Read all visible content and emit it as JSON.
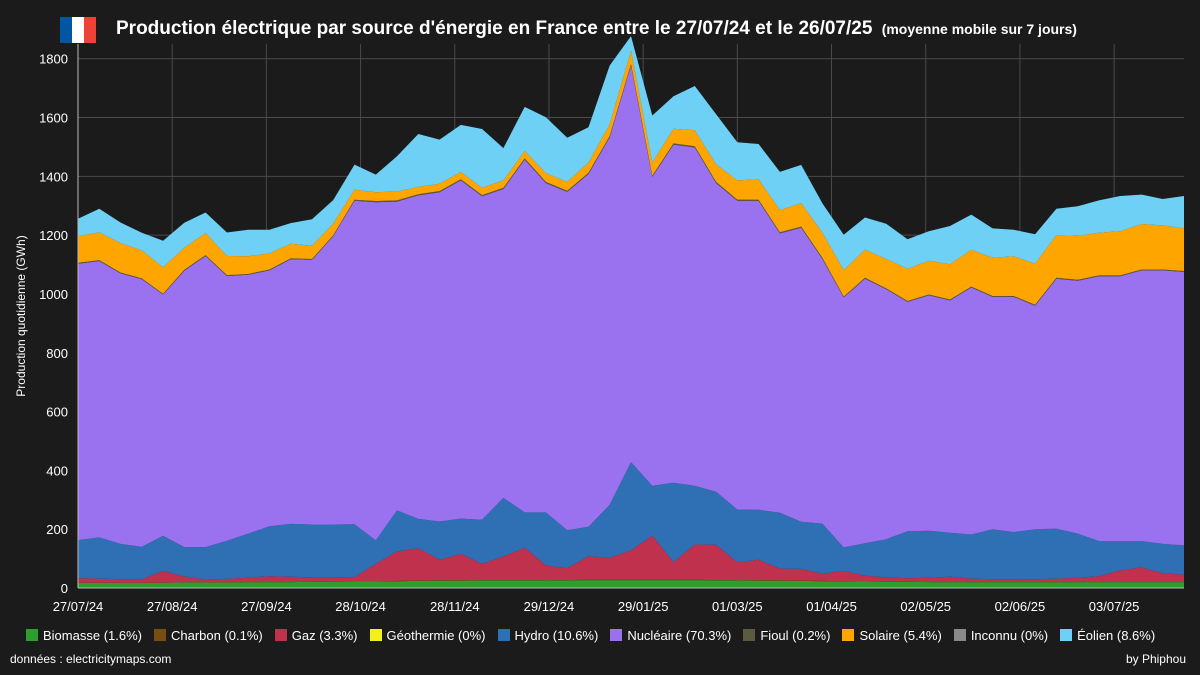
{
  "header": {
    "title": "Production électrique par source d'énergie en France entre le 27/07/24 et le 26/07/25",
    "subtitle": "(moyenne mobile sur 7 jours)",
    "flag_colors": [
      "#0055a4",
      "#ffffff",
      "#ef4135"
    ]
  },
  "footer": {
    "source": "données : electricitymaps.com",
    "credit": "by Phiphou"
  },
  "chart_data": {
    "type": "area",
    "stacked": true,
    "ylabel": "Production quotidienne (GWh)",
    "xlabel": "",
    "ylim": [
      0,
      1850
    ],
    "yticks": [
      0,
      200,
      400,
      600,
      800,
      1000,
      1200,
      1400,
      1600,
      1800
    ],
    "x_tick_labels": [
      "27/07/24",
      "27/08/24",
      "27/09/24",
      "28/10/24",
      "28/11/24",
      "29/12/24",
      "29/01/25",
      "01/03/25",
      "01/04/25",
      "02/05/25",
      "02/06/25",
      "03/07/25"
    ],
    "x_tick_days": [
      0,
      31,
      62,
      93,
      124,
      155,
      186,
      217,
      248,
      279,
      310,
      341
    ],
    "x_range_days": [
      0,
      364
    ],
    "grid": true,
    "legend_position": "bottom",
    "x_days": [
      0,
      7,
      14,
      21,
      28,
      35,
      42,
      49,
      56,
      63,
      70,
      77,
      84,
      91,
      98,
      105,
      112,
      119,
      126,
      133,
      140,
      147,
      154,
      161,
      168,
      175,
      182,
      189,
      196,
      203,
      210,
      217,
      224,
      231,
      238,
      245,
      252,
      259,
      266,
      273,
      280,
      287,
      294,
      301,
      308,
      315,
      322,
      329,
      336,
      343,
      350,
      357,
      364
    ],
    "series": [
      {
        "name": "Biomasse (1.6%)",
        "color": "#2ca02c",
        "values": [
          18,
          18,
          18,
          18,
          18,
          19,
          19,
          19,
          20,
          20,
          20,
          21,
          21,
          22,
          22,
          23,
          24,
          25,
          25,
          26,
          26,
          26,
          26,
          26,
          27,
          27,
          27,
          27,
          27,
          27,
          26,
          26,
          25,
          25,
          24,
          23,
          22,
          22,
          21,
          21,
          20,
          20,
          20,
          20,
          20,
          20,
          20,
          20,
          20,
          20,
          20,
          20,
          20
        ]
      },
      {
        "name": "Charbon (0.1%)",
        "color": "#7a4e12",
        "values": [
          0,
          0,
          0,
          0,
          0,
          0,
          0,
          0,
          0,
          0,
          0,
          0,
          0,
          0,
          0,
          1,
          1,
          1,
          1,
          1,
          1,
          1,
          1,
          1,
          1,
          1,
          1,
          1,
          1,
          1,
          1,
          1,
          1,
          1,
          1,
          1,
          1,
          0,
          0,
          0,
          0,
          0,
          0,
          0,
          0,
          0,
          0,
          0,
          0,
          0,
          0,
          0,
          0
        ]
      },
      {
        "name": "Gaz (3.3%)",
        "color": "#c0314d",
        "values": [
          15,
          14,
          12,
          12,
          40,
          20,
          10,
          12,
          15,
          20,
          18,
          15,
          15,
          15,
          60,
          100,
          110,
          70,
          90,
          55,
          80,
          110,
          50,
          40,
          80,
          75,
          100,
          150,
          60,
          120,
          120,
          60,
          70,
          40,
          40,
          25,
          35,
          20,
          15,
          12,
          15,
          18,
          12,
          10,
          10,
          10,
          12,
          15,
          20,
          40,
          50,
          30,
          25
        ]
      },
      {
        "name": "Géothermie (0%)",
        "color": "#f2ef1a",
        "values": [
          0,
          0,
          0,
          0,
          0,
          0,
          0,
          0,
          0,
          0,
          0,
          0,
          0,
          0,
          0,
          0,
          0,
          0,
          0,
          0,
          0,
          0,
          0,
          0,
          0,
          0,
          0,
          0,
          0,
          0,
          0,
          0,
          0,
          0,
          0,
          0,
          0,
          0,
          0,
          0,
          0,
          0,
          0,
          0,
          0,
          0,
          0,
          0,
          0,
          0,
          0,
          0,
          0
        ]
      },
      {
        "name": "Hydro (10.6%)",
        "color": "#2f6fb3",
        "values": [
          130,
          140,
          120,
          110,
          120,
          100,
          110,
          130,
          150,
          170,
          180,
          180,
          180,
          180,
          80,
          140,
          100,
          130,
          120,
          150,
          200,
          120,
          180,
          130,
          100,
          180,
          300,
          170,
          270,
          200,
          180,
          180,
          170,
          190,
          160,
          170,
          80,
          110,
          130,
          160,
          160,
          150,
          150,
          170,
          160,
          170,
          170,
          150,
          120,
          100,
          90,
          100,
          100
        ]
      },
      {
        "name": "Nucléaire (70.3%)",
        "color": "#9a72f0",
        "values": [
          940,
          940,
          920,
          910,
          820,
          940,
          990,
          900,
          880,
          870,
          900,
          900,
          980,
          1100,
          1150,
          1050,
          1100,
          1120,
          1150,
          1100,
          1050,
          1200,
          1120,
          1150,
          1200,
          1250,
          1350,
          1050,
          1150,
          1150,
          1050,
          1050,
          1050,
          950,
          1000,
          900,
          850,
          900,
          850,
          780,
          800,
          790,
          840,
          790,
          800,
          760,
          850,
          860,
          900,
          900,
          920,
          930,
          930
        ]
      },
      {
        "name": "Fioul (0.2%)",
        "color": "#5c5a3f",
        "values": [
          3,
          3,
          3,
          3,
          3,
          3,
          3,
          3,
          3,
          3,
          3,
          3,
          3,
          3,
          4,
          4,
          4,
          4,
          4,
          4,
          4,
          4,
          4,
          4,
          4,
          4,
          4,
          4,
          4,
          4,
          4,
          4,
          4,
          4,
          4,
          4,
          3,
          3,
          3,
          3,
          3,
          3,
          3,
          3,
          3,
          3,
          3,
          3,
          3,
          3,
          3,
          3,
          3
        ]
      },
      {
        "name": "Solaire (5.4%)",
        "color": "#ffa500",
        "values": [
          90,
          95,
          100,
          95,
          90,
          75,
          75,
          65,
          60,
          55,
          50,
          45,
          40,
          35,
          30,
          30,
          25,
          25,
          25,
          25,
          25,
          25,
          30,
          30,
          35,
          40,
          45,
          45,
          50,
          55,
          60,
          65,
          70,
          75,
          80,
          85,
          90,
          95,
          100,
          110,
          115,
          120,
          125,
          130,
          135,
          140,
          145,
          150,
          145,
          150,
          155,
          150,
          145
        ]
      },
      {
        "name": "Inconnu (0%)",
        "color": "#8a8a8a",
        "values": [
          0,
          0,
          0,
          0,
          0,
          0,
          0,
          0,
          0,
          0,
          0,
          0,
          0,
          0,
          0,
          0,
          0,
          0,
          0,
          0,
          0,
          0,
          0,
          0,
          0,
          0,
          0,
          0,
          0,
          0,
          0,
          0,
          0,
          0,
          0,
          0,
          0,
          0,
          0,
          0,
          0,
          0,
          0,
          0,
          0,
          0,
          0,
          0,
          0,
          0,
          0,
          0,
          0
        ]
      },
      {
        "name": "Éolien (8.6%)",
        "color": "#6fd0f5",
        "values": [
          60,
          80,
          70,
          60,
          90,
          85,
          70,
          80,
          90,
          80,
          70,
          90,
          80,
          85,
          60,
          120,
          180,
          150,
          160,
          200,
          110,
          150,
          190,
          150,
          120,
          200,
          50,
          160,
          110,
          150,
          170,
          130,
          120,
          130,
          130,
          100,
          120,
          110,
          120,
          100,
          100,
          130,
          120,
          100,
          90,
          100,
          90,
          100,
          110,
          120,
          100,
          90,
          110
        ]
      }
    ]
  }
}
